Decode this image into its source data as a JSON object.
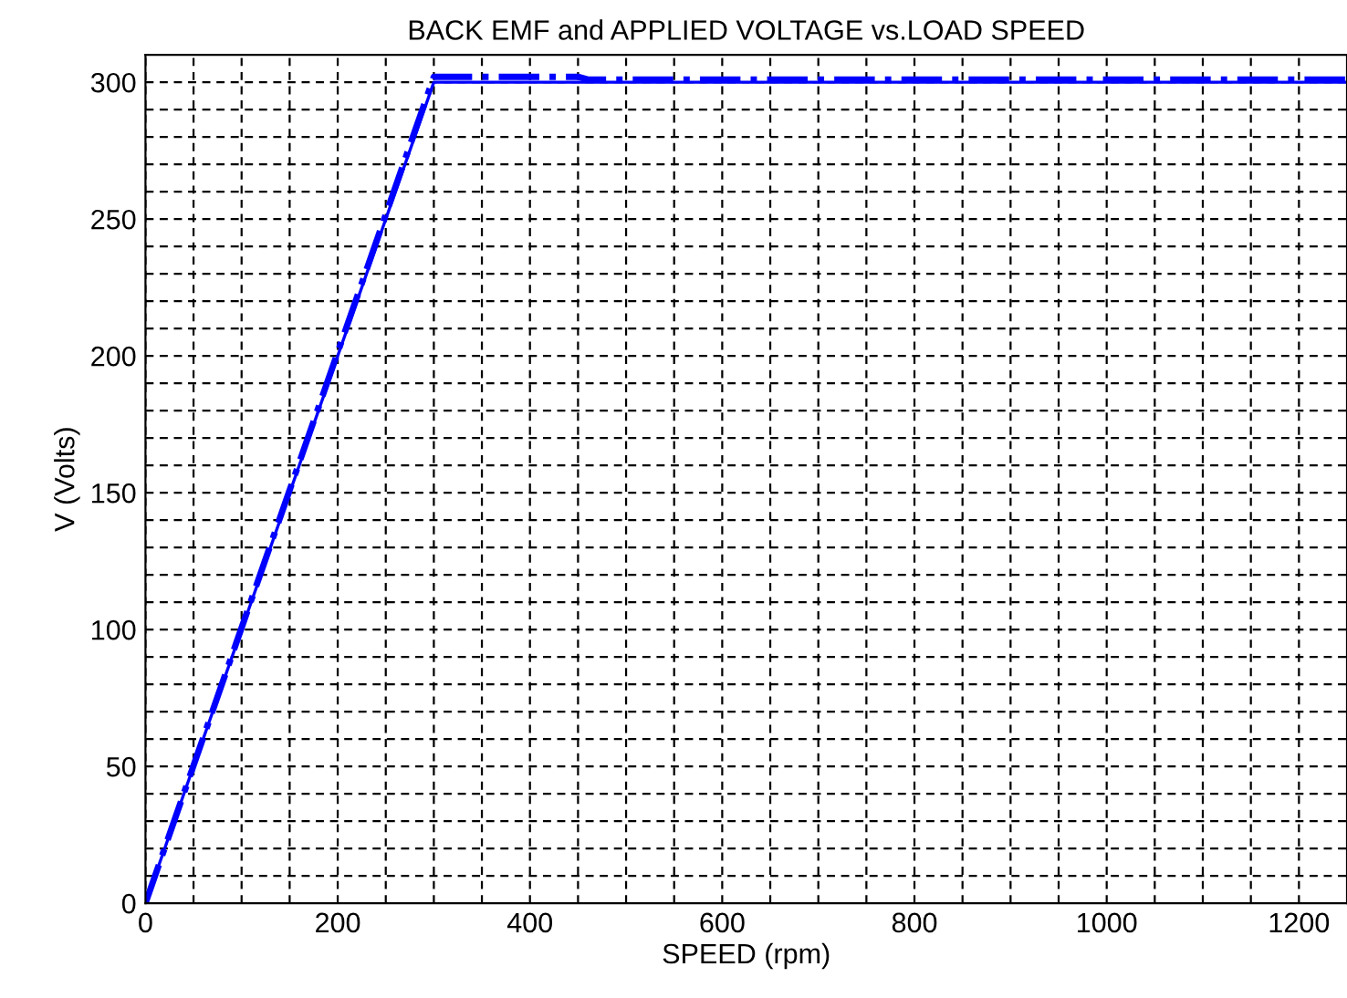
{
  "chart_data": {
    "type": "line",
    "title": "BACK EMF and APPLIED VOLTAGE vs.LOAD SPEED",
    "xlabel": "SPEED (rpm)",
    "ylabel": "V (Volts)",
    "xlim": [
      0,
      1250
    ],
    "ylim": [
      0,
      310
    ],
    "xticks": [
      0,
      {
        "value": 50,
        "label": null
      },
      {
        "value": 100,
        "label": null
      },
      {
        "value": 150,
        "label": null
      },
      200,
      {
        "value": 250,
        "label": null
      },
      {
        "value": 300,
        "label": null
      },
      {
        "value": 350,
        "label": null
      },
      400,
      {
        "value": 450,
        "label": null
      },
      {
        "value": 500,
        "label": null
      },
      {
        "value": 550,
        "label": null
      },
      600,
      {
        "value": 650,
        "label": null
      },
      {
        "value": 700,
        "label": null
      },
      {
        "value": 750,
        "label": null
      },
      800,
      {
        "value": 850,
        "label": null
      },
      {
        "value": 900,
        "label": null
      },
      {
        "value": 950,
        "label": null
      },
      1000,
      {
        "value": 1050,
        "label": null
      },
      {
        "value": 1100,
        "label": null
      },
      {
        "value": 1150,
        "label": null
      },
      1200
    ],
    "yticks": [
      0,
      {
        "value": 10,
        "label": null
      },
      {
        "value": 20,
        "label": null
      },
      {
        "value": 30,
        "label": null
      },
      {
        "value": 40,
        "label": null
      },
      50,
      {
        "value": 60,
        "label": null
      },
      {
        "value": 70,
        "label": null
      },
      {
        "value": 80,
        "label": null
      },
      {
        "value": 90,
        "label": null
      },
      100,
      {
        "value": 110,
        "label": null
      },
      {
        "value": 120,
        "label": null
      },
      {
        "value": 130,
        "label": null
      },
      {
        "value": 140,
        "label": null
      },
      150,
      {
        "value": 160,
        "label": null
      },
      {
        "value": 170,
        "label": null
      },
      {
        "value": 180,
        "label": null
      },
      {
        "value": 190,
        "label": null
      },
      200,
      {
        "value": 210,
        "label": null
      },
      {
        "value": 220,
        "label": null
      },
      {
        "value": 230,
        "label": null
      },
      {
        "value": 240,
        "label": null
      },
      250,
      {
        "value": 260,
        "label": null
      },
      {
        "value": 270,
        "label": null
      },
      {
        "value": 280,
        "label": null
      },
      {
        "value": 290,
        "label": null
      },
      300
    ],
    "grid": true,
    "series": [
      {
        "color": "#0000ff",
        "line_style": "solid",
        "x": [
          0,
          300,
          1250
        ],
        "values": [
          0,
          300,
          300
        ]
      },
      {
        "color": "#0000ff",
        "line_style": "dashdot",
        "x": [
          0,
          300,
          450,
          460,
          1250
        ],
        "values": [
          0,
          302,
          302,
          301,
          301
        ]
      }
    ]
  }
}
